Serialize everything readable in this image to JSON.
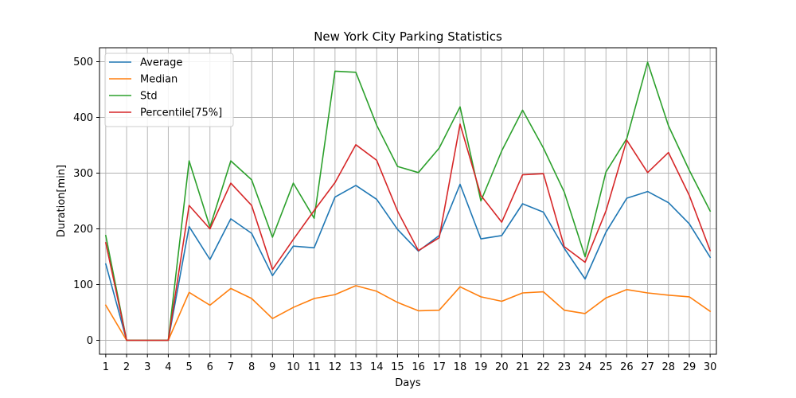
{
  "chart_data": {
    "type": "line",
    "title": "New York City Parking Statistics",
    "xlabel": "Days",
    "ylabel": "Duration[min]",
    "x": [
      1,
      2,
      3,
      4,
      5,
      6,
      7,
      8,
      9,
      10,
      11,
      12,
      13,
      14,
      15,
      16,
      17,
      18,
      19,
      20,
      21,
      22,
      23,
      24,
      25,
      26,
      27,
      28,
      29,
      30
    ],
    "xlim": [
      0.7,
      30.3
    ],
    "ylim": [
      -25,
      525
    ],
    "yticks": [
      0,
      100,
      200,
      300,
      400,
      500
    ],
    "grid": true,
    "legend_position": "top-left",
    "series": [
      {
        "name": "Average",
        "color": "#1f77b4",
        "values": [
          137,
          0,
          0,
          0,
          204,
          145,
          218,
          192,
          116,
          169,
          166,
          257,
          278,
          253,
          199,
          160,
          188,
          280,
          182,
          188,
          245,
          230,
          165,
          110,
          194,
          255,
          267,
          247,
          209,
          149
        ]
      },
      {
        "name": "Median",
        "color": "#ff7f0e",
        "values": [
          63,
          0,
          0,
          0,
          86,
          63,
          93,
          75,
          39,
          59,
          75,
          82,
          98,
          88,
          68,
          53,
          54,
          96,
          78,
          70,
          85,
          87,
          54,
          48,
          76,
          91,
          85,
          81,
          78,
          52
        ]
      },
      {
        "name": "Std",
        "color": "#2ca02c",
        "values": [
          188,
          0,
          0,
          0,
          322,
          203,
          322,
          288,
          185,
          282,
          219,
          483,
          481,
          386,
          312,
          301,
          345,
          419,
          250,
          340,
          413,
          345,
          266,
          150,
          302,
          362,
          499,
          385,
          305,
          232
        ]
      },
      {
        "name": "Percentile[75%]",
        "color": "#d62728",
        "values": [
          175,
          0,
          0,
          0,
          242,
          200,
          282,
          242,
          127,
          181,
          233,
          283,
          351,
          323,
          232,
          161,
          184,
          388,
          260,
          212,
          297,
          299,
          168,
          140,
          232,
          359,
          301,
          337,
          260,
          161
        ]
      }
    ]
  }
}
